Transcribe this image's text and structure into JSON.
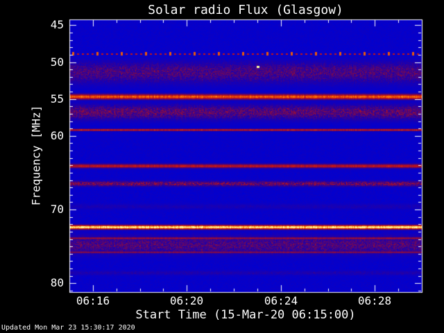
{
  "colors": {
    "page_bg": "#000000",
    "frame": "#ffffff",
    "text": "#ffffff"
  },
  "footer": {
    "updated": "Updated Mon Mar 23 15:30:17 2020"
  },
  "chart_data": {
    "type": "heatmap",
    "title": "Solar radio Flux (Glasgow)",
    "xlabel": "Start Time (15-Mar-20 06:15:00)",
    "ylabel": "Frequency [MHz]",
    "x_start": "06:15",
    "x_end": "06:30",
    "x_minutes": 15,
    "x_ticks": [
      {
        "label": "06:16",
        "minute": 1
      },
      {
        "label": "06:20",
        "minute": 5
      },
      {
        "label": "06:24",
        "minute": 9
      },
      {
        "label": "06:28",
        "minute": 13
      }
    ],
    "y_range": [
      44.2,
      81.2
    ],
    "y_ticks": [
      45,
      50,
      55,
      60,
      70,
      80
    ],
    "grid": false,
    "legend": "none",
    "background_intensity": 0.035,
    "colormap": [
      "#0000d2",
      "#2800a0",
      "#780a50",
      "#c81414",
      "#ff7800",
      "#ffffa0"
    ],
    "bands": [
      {
        "name": "rfi-dashed-49MHz",
        "center": 48.9,
        "half_width": 0.12,
        "intensity": 0.6,
        "style": "dashed"
      },
      {
        "name": "speckle-50-53MHz",
        "center": 51.4,
        "half_width": 1.9,
        "intensity": 0.33,
        "style": "speckle"
      },
      {
        "name": "band-54.7MHz",
        "center": 54.7,
        "half_width": 0.45,
        "intensity": 0.75,
        "style": "solid"
      },
      {
        "name": "speckle-55-58MHz",
        "center": 56.8,
        "half_width": 1.3,
        "intensity": 0.38,
        "style": "speckle"
      },
      {
        "name": "line-59.2MHz",
        "center": 59.2,
        "half_width": 0.18,
        "intensity": 0.62,
        "style": "solid"
      },
      {
        "name": "band-64.1MHz",
        "center": 64.1,
        "half_width": 0.35,
        "intensity": 0.58,
        "style": "solid"
      },
      {
        "name": "band-66.5MHz",
        "center": 66.5,
        "half_width": 0.45,
        "intensity": 0.45,
        "style": "speckle"
      },
      {
        "name": "faint-69.6MHz",
        "center": 69.6,
        "half_width": 0.5,
        "intensity": 0.14,
        "style": "speckle"
      },
      {
        "name": "bright-band-72.4MHz",
        "center": 72.4,
        "half_width": 0.35,
        "intensity": 1.0,
        "style": "solid"
      },
      {
        "name": "speckle-73-76MHz",
        "center": 74.8,
        "half_width": 1.6,
        "intensity": 0.34,
        "style": "speckle"
      },
      {
        "name": "line-73.9MHz",
        "center": 73.9,
        "half_width": 0.2,
        "intensity": 0.5,
        "style": "solid"
      },
      {
        "name": "line-75.8MHz",
        "center": 75.8,
        "half_width": 0.2,
        "intensity": 0.44,
        "style": "solid"
      },
      {
        "name": "faint-78.6MHz",
        "center": 78.6,
        "half_width": 0.4,
        "intensity": 0.17,
        "style": "speckle"
      }
    ],
    "events": [
      {
        "name": "point-burst",
        "time_minute": 8.0,
        "freq": 50.6,
        "intensity": 1.0
      }
    ]
  }
}
